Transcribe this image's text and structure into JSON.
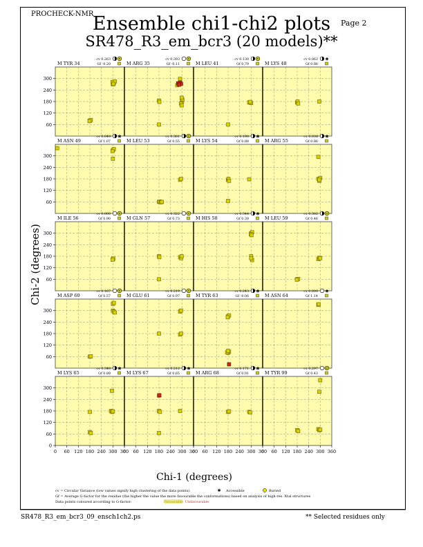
{
  "header": {
    "program": "PROCHECK-NMR",
    "page": "Page  2",
    "title": "Ensemble chi1-chi2 plots",
    "subtitle": "SR478_R3_em_bcr3 (20 models)**"
  },
  "footer": {
    "filename": "SR478_R3_em_bcr3_09_ensch1ch2.ps",
    "note": "** Selected residues only"
  },
  "legend": {
    "cv_line": "cv = Circular Variance (low values signify high clustering of the data points).",
    "accessible": "Accessible",
    "buried": "Buried",
    "gf_line": "Gf = Average G-factor for the residue (the higher the value the more favourable the conformations) based on analysis of high-res. Xtal structures",
    "colour_line": "Data points coloured according to G-factor:",
    "favourable": "Favourable",
    "unfavourable": "Unfavourable"
  },
  "colors": {
    "panel_bg": "#fffcb0",
    "point_fill": "#d8d000",
    "point_red": "#c8281e",
    "favourable": "#d8d000",
    "unfavourable": "#c8281e"
  },
  "chart_data": {
    "type": "scatter",
    "xlabel": "Chi-1 (degrees)",
    "ylabel": "Chi-2 (degrees)",
    "xlim": [
      0,
      360
    ],
    "ylim": [
      0,
      360
    ],
    "xticks": [
      0,
      60,
      120,
      180,
      240,
      300,
      360
    ],
    "yticks": [
      60,
      120,
      180,
      240,
      300
    ],
    "yticks_bottom": [
      0,
      60,
      120,
      180,
      240,
      300
    ],
    "grid": true,
    "panels": [
      {
        "label": "M TYR 34",
        "cv": "cv 0.263",
        "gf": "Gf -0.20",
        "acc": "half",
        "points": [
          [
            300,
            270
          ],
          [
            305,
            275
          ],
          [
            298,
            282
          ],
          [
            310,
            285
          ],
          [
            303,
            272
          ],
          [
            180,
            80
          ],
          [
            185,
            84
          ],
          [
            178,
            78
          ]
        ]
      },
      {
        "label": "M ARG 35",
        "cv": "cv 0.393",
        "gf": "Gf -0.11",
        "acc": "buried",
        "points": [
          [
            290,
            298
          ],
          [
            275,
            265
          ],
          [
            280,
            272
          ],
          [
            300,
            180
          ],
          [
            295,
            170
          ],
          [
            298,
            160
          ],
          [
            302,
            190
          ],
          [
            298,
            200
          ],
          [
            180,
            185
          ],
          [
            182,
            178
          ],
          [
            180,
            60
          ]
        ],
        "red": [
          [
            280,
            275
          ],
          [
            290,
            278
          ],
          [
            295,
            272
          ],
          [
            285,
            268
          ]
        ]
      },
      {
        "label": "M LEU 41",
        "cv": "cv 0.130",
        "gf": "Gf 0.79",
        "acc": "half",
        "points": [
          [
            290,
            175
          ],
          [
            300,
            172
          ],
          [
            295,
            178
          ],
          [
            180,
            60
          ]
        ]
      },
      {
        "label": "M LYS 48",
        "cv": "cv 0.062",
        "gf": "Gf 0.86",
        "acc": "star",
        "points": [
          [
            180,
            175
          ],
          [
            182,
            180
          ],
          [
            185,
            170
          ],
          [
            295,
            180
          ]
        ]
      },
      {
        "label": "M ASN 49",
        "cv": "cv 0.049",
        "gf": "Gf 1.07",
        "acc": "star",
        "points": [
          [
            300,
            330
          ],
          [
            305,
            335
          ],
          [
            298,
            325
          ],
          [
            300,
            285
          ],
          [
            10,
            340
          ]
        ]
      },
      {
        "label": "M LEU 53",
        "cv": "cv 0.381",
        "gf": "Gf 0.55",
        "acc": "half",
        "points": [
          [
            180,
            60
          ],
          [
            185,
            62
          ],
          [
            190,
            58
          ],
          [
            195,
            60
          ],
          [
            290,
            175
          ],
          [
            295,
            180
          ]
        ]
      },
      {
        "label": "M LYS 54",
        "cv": "cv 0.190",
        "gf": "Gf 0.88",
        "acc": "star",
        "points": [
          [
            180,
            175
          ],
          [
            182,
            180
          ],
          [
            185,
            170
          ],
          [
            290,
            178
          ],
          [
            180,
            65
          ]
        ]
      },
      {
        "label": "M ARG 55",
        "cv": "cv 0.038",
        "gf": "Gf 0.86",
        "acc": "star",
        "points": [
          [
            290,
            180
          ],
          [
            295,
            170
          ],
          [
            300,
            185
          ],
          [
            295,
            175
          ],
          [
            290,
            295
          ]
        ]
      },
      {
        "label": "M ILE 56",
        "cv": "cv 0.000",
        "gf": "Gf 0.90",
        "acc": "buried",
        "points": [
          [
            300,
            165
          ],
          [
            302,
            168
          ],
          [
            298,
            162
          ]
        ]
      },
      {
        "label": "M GLN 57",
        "cv": "cv 0.322",
        "gf": "Gf 0.73",
        "acc": "buried",
        "points": [
          [
            180,
            180
          ],
          [
            182,
            175
          ],
          [
            290,
            175
          ],
          [
            295,
            170
          ],
          [
            298,
            180
          ],
          [
            180,
            60
          ]
        ]
      },
      {
        "label": "M HIS 58",
        "cv": "cv 0.344",
        "gf": "Gf 0.39",
        "acc": "star",
        "points": [
          [
            300,
            300
          ],
          [
            305,
            305
          ],
          [
            298,
            295
          ],
          [
            300,
            180
          ],
          [
            305,
            160
          ],
          [
            300,
            170
          ],
          [
            302,
            290
          ]
        ]
      },
      {
        "label": "M LEU 59",
        "cv": "cv 0.382",
        "gf": "Gf 0.46",
        "acc": "half",
        "points": [
          [
            180,
            60
          ],
          [
            185,
            62
          ],
          [
            178,
            58
          ],
          [
            290,
            165
          ],
          [
            295,
            172
          ],
          [
            300,
            170
          ]
        ]
      },
      {
        "label": "M ASP 60",
        "cv": "cv 0.167",
        "gf": "Gf 0.57",
        "acc": "buried",
        "points": [
          [
            300,
            335
          ],
          [
            305,
            340
          ],
          [
            300,
            300
          ],
          [
            305,
            295
          ],
          [
            310,
            290
          ],
          [
            180,
            60
          ],
          [
            185,
            62
          ]
        ]
      },
      {
        "label": "M GLU 61",
        "cv": "cv 0.219",
        "gf": "Gf 0.97",
        "acc": "buried",
        "points": [
          [
            290,
            295
          ],
          [
            295,
            300
          ],
          [
            290,
            175
          ],
          [
            295,
            180
          ],
          [
            180,
            180
          ]
        ]
      },
      {
        "label": "M TYR 63",
        "cv": "cv 0.243",
        "gf": "Gf -0.06",
        "acc": "star",
        "points": [
          [
            180,
            270
          ],
          [
            185,
            275
          ],
          [
            178,
            265
          ],
          [
            180,
            80
          ],
          [
            185,
            85
          ],
          [
            175,
            82
          ],
          [
            180,
            90
          ]
        ],
        "red": [
          [
            185,
            20
          ]
        ]
      },
      {
        "label": "M ASN 64",
        "cv": "cv 0.000",
        "gf": "Gf 1.14",
        "acc": "open",
        "points": [
          [
            290,
            330
          ],
          [
            292,
            333
          ]
        ]
      },
      {
        "label": "M LYS 65",
        "cv": "cv 0.348",
        "gf": "Gf 0.89",
        "acc": "star",
        "points": [
          [
            290,
            180
          ],
          [
            295,
            175
          ],
          [
            300,
            178
          ],
          [
            180,
            175
          ],
          [
            295,
            285
          ],
          [
            180,
            70
          ],
          [
            185,
            65
          ]
        ]
      },
      {
        "label": "M LYS 67",
        "cv": "cv 0.212",
        "gf": "Gf 0.65",
        "acc": "star",
        "points": [
          [
            180,
            180
          ],
          [
            185,
            175
          ],
          [
            290,
            180
          ],
          [
            180,
            65
          ],
          [
            180,
            260
          ]
        ],
        "red": [
          [
            182,
            262
          ]
        ]
      },
      {
        "label": "M ARG 68",
        "cv": "cv 0.171",
        "gf": "Gf 0.91",
        "acc": "star",
        "points": [
          [
            180,
            175
          ],
          [
            185,
            178
          ],
          [
            290,
            175
          ],
          [
            295,
            172
          ]
        ]
      },
      {
        "label": "M TYR 99",
        "cv": "cv 0.297",
        "gf": "Gf 0.43",
        "acc": "buried",
        "points": [
          [
            300,
            340
          ],
          [
            295,
            280
          ],
          [
            180,
            80
          ],
          [
            185,
            75
          ],
          [
            290,
            85
          ],
          [
            295,
            80
          ],
          [
            300,
            82
          ]
        ]
      }
    ]
  }
}
